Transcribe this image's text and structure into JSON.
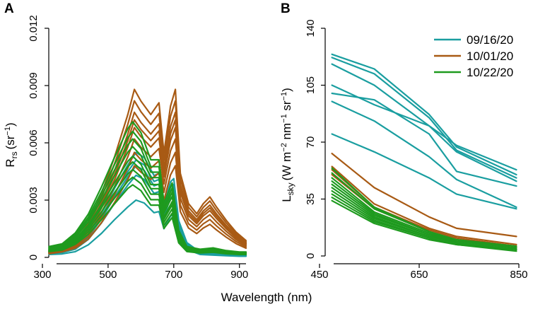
{
  "xlabel_shared": "Wavelength (nm)",
  "colors": {
    "09/16/20": "#1a9ea0",
    "10/01/20": "#a85a14",
    "10/22/20": "#1e9a1e"
  },
  "chart_data": [
    {
      "panel": "A",
      "type": "line",
      "xlabel": "Wavelength (nm)",
      "ylabel": "R",
      "ylabel_sub": "rs",
      "ylabel_unit": "(sr",
      "ylabel_unit_sup": "−1",
      "ylabel_unit_end": ")",
      "xlim": [
        320,
        920
      ],
      "ylim": [
        0,
        0.012
      ],
      "xticks": [
        300,
        500,
        700,
        900
      ],
      "xtick_labels": [
        "300",
        "500",
        "700",
        "900"
      ],
      "yticks": [
        0,
        0.003,
        0.006,
        0.009,
        0.012
      ],
      "ytick_labels": [
        "0",
        "0.003",
        "0.006",
        "0.009",
        "0.012"
      ],
      "series": [
        {
          "name": "09/16/20",
          "scale": 0.003
        },
        {
          "name": "09/16/20",
          "scale": 0.0043
        },
        {
          "name": "09/16/20",
          "scale": 0.0048
        },
        {
          "name": "09/16/20",
          "scale": 0.0051
        },
        {
          "name": "09/16/20",
          "scale": 0.0055
        },
        {
          "name": "10/01/20",
          "scale": 0.0048
        },
        {
          "name": "10/01/20",
          "scale": 0.0055
        },
        {
          "name": "10/01/20",
          "scale": 0.0062
        },
        {
          "name": "10/01/20",
          "scale": 0.0068
        },
        {
          "name": "10/01/20",
          "scale": 0.0072
        },
        {
          "name": "10/01/20",
          "scale": 0.0076
        },
        {
          "name": "10/01/20",
          "scale": 0.0082
        },
        {
          "name": "10/01/20",
          "scale": 0.0088
        },
        {
          "name": "10/22/20",
          "scale": 0.0038
        },
        {
          "name": "10/22/20",
          "scale": 0.0042
        },
        {
          "name": "10/22/20",
          "scale": 0.0046
        },
        {
          "name": "10/22/20",
          "scale": 0.005
        },
        {
          "name": "10/22/20",
          "scale": 0.0053
        },
        {
          "name": "10/22/20",
          "scale": 0.0058
        },
        {
          "name": "10/22/20",
          "scale": 0.0062
        },
        {
          "name": "10/22/20",
          "scale": 0.0066
        },
        {
          "name": "10/22/20",
          "scale": 0.0071
        }
      ]
    },
    {
      "panel": "B",
      "type": "line",
      "xlabel": "Wavelength (nm)",
      "ylabel": "L",
      "ylabel_sub": "sky",
      "ylabel_unit": "(W m",
      "ylabel_unit_sup": "−2",
      "ylabel_unit_mid": " nm",
      "ylabel_unit_sup2": "−1",
      "ylabel_unit_mid2": " sr",
      "ylabel_unit_sup3": "−1",
      "ylabel_unit_end": ")",
      "xlim": [
        470,
        850
      ],
      "ylim": [
        0,
        140
      ],
      "xticks": [
        450,
        650,
        850
      ],
      "xtick_labels": [
        "450",
        "650",
        "850"
      ],
      "yticks": [
        0,
        35,
        70,
        105,
        140
      ],
      "ytick_labels": [
        "0",
        "35",
        "70",
        "105",
        "140"
      ],
      "x": [
        475,
        560,
        670,
        725,
        845
      ],
      "legend": [
        "09/16/20",
        "10/01/20",
        "10/22/20"
      ],
      "legend_position": "top-right",
      "series": [
        {
          "name": "09/16/20",
          "values": [
            124,
            115,
            87,
            67,
            50
          ]
        },
        {
          "name": "09/16/20",
          "values": [
            122,
            112,
            85,
            65,
            48
          ]
        },
        {
          "name": "09/16/20",
          "values": [
            118,
            105,
            80,
            64,
            46
          ]
        },
        {
          "name": "09/16/20",
          "values": [
            105,
            93,
            80,
            68,
            53
          ]
        },
        {
          "name": "09/16/20",
          "values": [
            100,
            96,
            75,
            52,
            43
          ]
        },
        {
          "name": "09/16/20",
          "values": [
            95,
            83,
            61,
            47,
            30
          ]
        },
        {
          "name": "09/16/20",
          "values": [
            75,
            64,
            48,
            38,
            29
          ]
        },
        {
          "name": "10/01/20",
          "values": [
            63,
            42,
            24,
            17,
            12
          ]
        },
        {
          "name": "10/01/20",
          "values": [
            55,
            32,
            17,
            12,
            7
          ]
        },
        {
          "name": "10/01/20",
          "values": [
            53,
            30,
            16,
            11,
            6
          ]
        },
        {
          "name": "10/01/20",
          "values": [
            50,
            29,
            15,
            10,
            5
          ]
        },
        {
          "name": "10/22/20",
          "values": [
            54,
            30,
            15,
            10,
            6
          ]
        },
        {
          "name": "10/22/20",
          "values": [
            51,
            29,
            15,
            9,
            5
          ]
        },
        {
          "name": "10/22/20",
          "values": [
            48,
            27,
            14,
            9,
            5
          ]
        },
        {
          "name": "10/22/20",
          "values": [
            46,
            26,
            13,
            9,
            5
          ]
        },
        {
          "name": "10/22/20",
          "values": [
            44,
            25,
            13,
            8,
            4
          ]
        },
        {
          "name": "10/22/20",
          "values": [
            42,
            24,
            12,
            8,
            4
          ]
        },
        {
          "name": "10/22/20",
          "values": [
            40,
            23,
            12,
            8,
            4
          ]
        },
        {
          "name": "10/22/20",
          "values": [
            38,
            22,
            11,
            7,
            4
          ]
        },
        {
          "name": "10/22/20",
          "values": [
            36,
            21,
            11,
            7,
            4
          ]
        },
        {
          "name": "10/22/20",
          "values": [
            34,
            20,
            10,
            7,
            3
          ]
        }
      ]
    }
  ]
}
